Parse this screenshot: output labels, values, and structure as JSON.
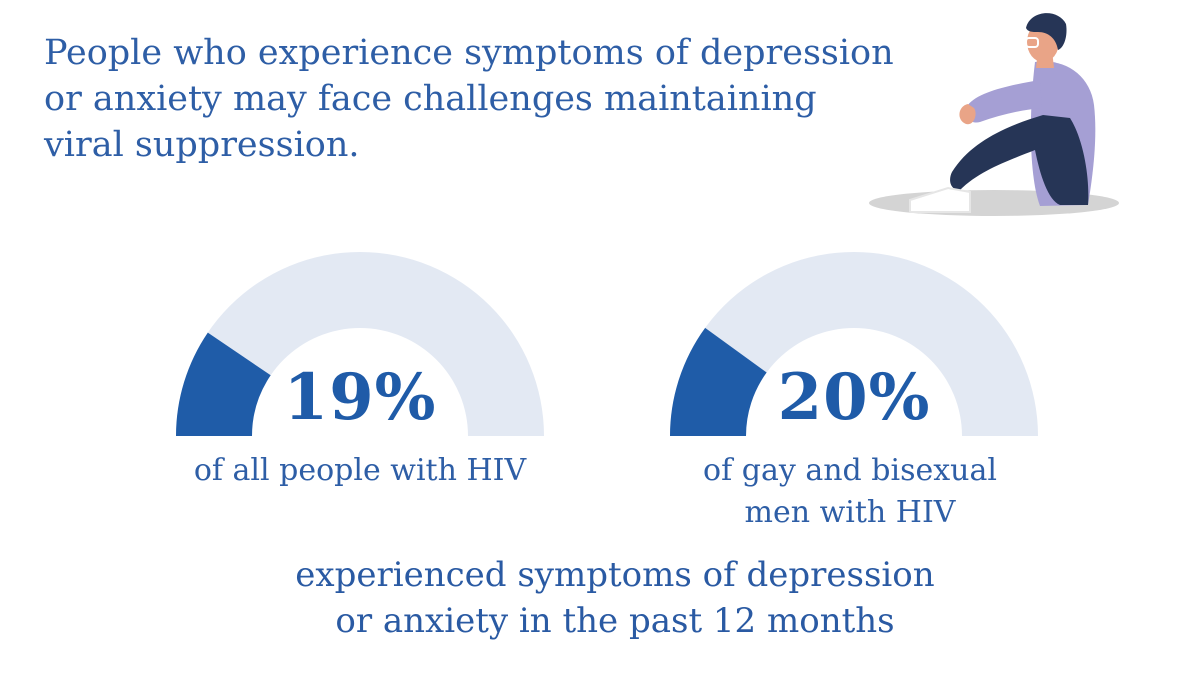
{
  "headline": {
    "line1": "People who experience symptoms of depression",
    "line2": "or anxiety may face challenges maintaining",
    "line3": "viral suppression."
  },
  "chart_data": [
    {
      "type": "gauge",
      "value": 19,
      "max": 100,
      "value_label": "19%",
      "caption": [
        "of all people with HIV"
      ]
    },
    {
      "type": "gauge",
      "value": 20,
      "max": 100,
      "value_label": "20%",
      "caption": [
        "of gay and bisexual",
        "men with HIV"
      ]
    }
  ],
  "footer": {
    "line1": "experienced symptoms of depression",
    "line2": "or anxiety in the past 12 months"
  },
  "colors": {
    "fill": "#1f5ca8",
    "track": "#e3e9f3",
    "text": "#2e5ea6"
  },
  "illustration": "person-sitting-hugging-knees"
}
